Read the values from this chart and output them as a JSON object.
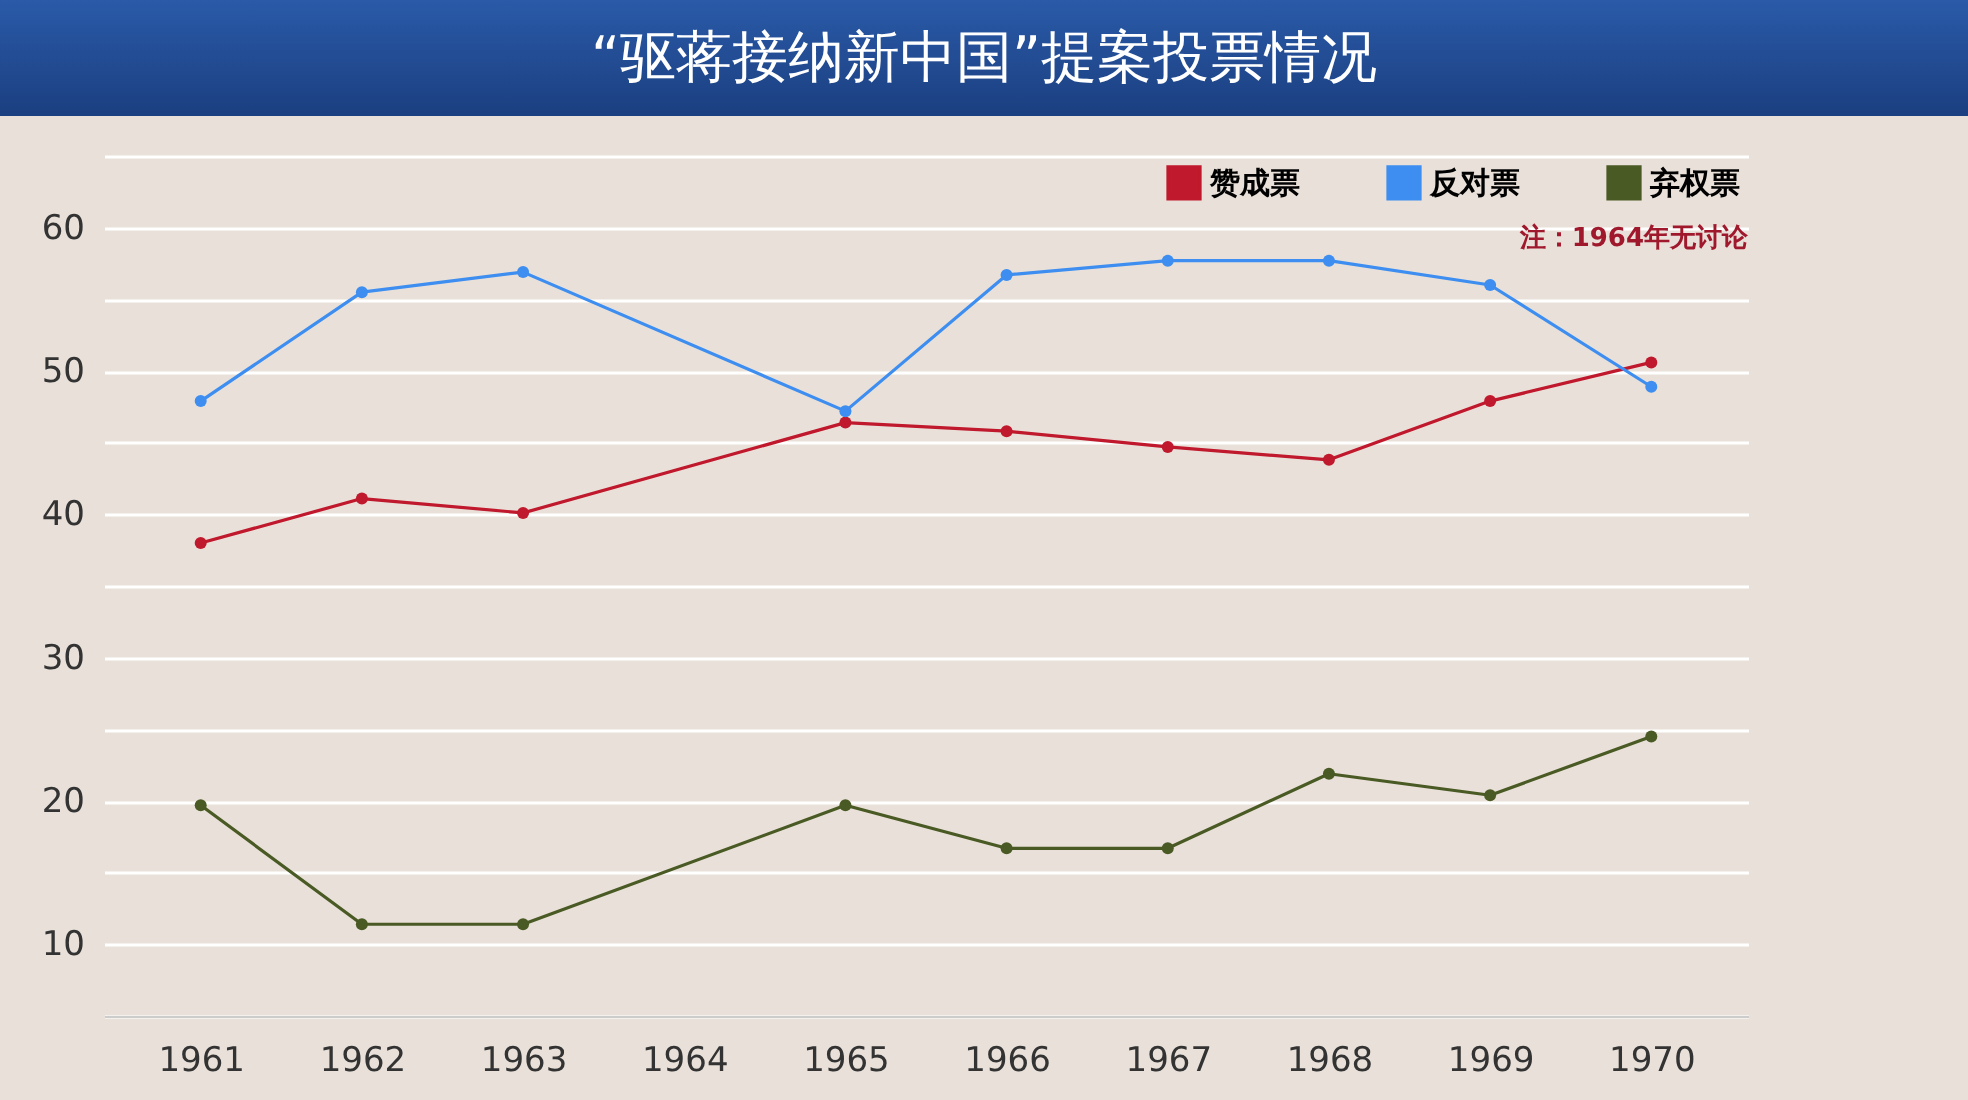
{
  "chart_data": {
    "type": "line",
    "title": "“驱蒋接纳新中国”提案投票情况",
    "annotations": [
      "注：1964年无讨论"
    ],
    "categories": [
      "1961",
      "1962",
      "1963",
      "1964",
      "1965",
      "1966",
      "1967",
      "1968",
      "1969",
      "1970"
    ],
    "series": [
      {
        "name": "赞成票",
        "color": "#c0182c",
        "values": [
          38,
          41.1,
          40.1,
          null,
          46.4,
          45.8,
          44.7,
          43.8,
          47.9,
          50.6
        ]
      },
      {
        "name": "反对票",
        "color": "#3d8ef0",
        "values": [
          47.9,
          55.5,
          56.9,
          null,
          47.2,
          56.7,
          57.7,
          57.7,
          56,
          48.9
        ]
      },
      {
        "name": "弃权票",
        "color": "#4a5a24",
        "values": [
          19.7,
          11.4,
          11.4,
          null,
          19.7,
          16.7,
          16.7,
          21.9,
          20.4,
          24.5
        ]
      }
    ],
    "ylim": [
      5,
      65
    ],
    "yticks": [
      {
        "value": 5,
        "label": null
      },
      10,
      {
        "value": 15,
        "label": null
      },
      20,
      {
        "value": 25,
        "label": null
      },
      30,
      {
        "value": 35,
        "label": null
      },
      40,
      {
        "value": 45,
        "label": null
      },
      50,
      {
        "value": 55,
        "label": null
      },
      60,
      {
        "value": 65,
        "label": null
      }
    ],
    "grid": "y",
    "legend": "top right",
    "marker": "circle",
    "line_style": "solid"
  }
}
